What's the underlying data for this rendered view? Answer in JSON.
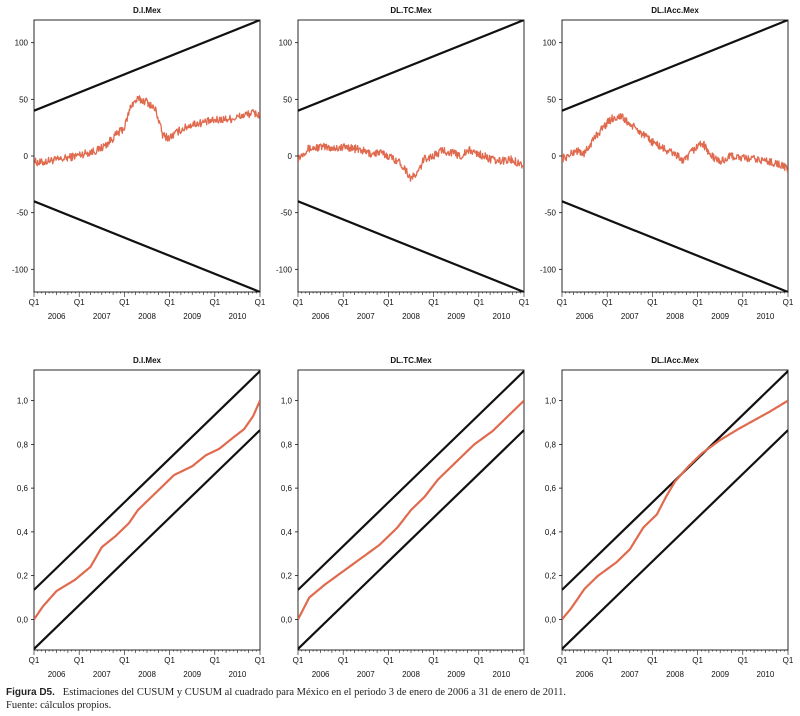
{
  "caption": {
    "label": "Figura D5.",
    "text": "Estimaciones del CUSUM y CUSUM al cuadrado para México en el periodo  3 de enero de 2006 a 31 de enero de 2011.",
    "source": "Fuente: cálculos propios."
  },
  "colors": {
    "series": "#e06a4e",
    "bands": "#111111",
    "axis": "#111111"
  },
  "chart_data": [
    {
      "type": "line",
      "title": "D.I.Mex",
      "kind": "cusum",
      "ylim": [
        -120,
        120
      ],
      "yticks": [
        -100,
        -50,
        0,
        50,
        100
      ],
      "band_x": [
        0,
        1
      ],
      "upper_band": [
        40,
        120
      ],
      "lower_band": [
        -40,
        -120
      ],
      "x_categories": [
        "2006",
        "2007",
        "2008",
        "2009",
        "2010"
      ],
      "x_tick_marks": [
        "Q1",
        "Q1",
        "Q1",
        "Q1",
        "Q1",
        "Q1"
      ],
      "series_x": [
        0,
        0.03,
        0.07,
        0.12,
        0.18,
        0.24,
        0.28,
        0.32,
        0.36,
        0.4,
        0.43,
        0.46,
        0.5,
        0.54,
        0.57,
        0.6,
        0.64,
        0.7,
        0.76,
        0.82,
        0.88,
        0.93,
        0.97,
        1
      ],
      "series_y": [
        -5,
        -6,
        -4,
        -3,
        0,
        3,
        5,
        10,
        18,
        25,
        45,
        50,
        48,
        40,
        18,
        16,
        22,
        28,
        30,
        32,
        33,
        36,
        38,
        36
      ]
    },
    {
      "type": "line",
      "title": "DL.TC.Mex",
      "kind": "cusum",
      "ylim": [
        -120,
        120
      ],
      "yticks": [
        -100,
        -50,
        0,
        50,
        100
      ],
      "band_x": [
        0,
        1
      ],
      "upper_band": [
        40,
        120
      ],
      "lower_band": [
        -40,
        -120
      ],
      "x_categories": [
        "2006",
        "2007",
        "2008",
        "2009",
        "2010"
      ],
      "x_tick_marks": [
        "Q1",
        "Q1",
        "Q1",
        "Q1",
        "Q1",
        "Q1"
      ],
      "series_x": [
        0,
        0.04,
        0.1,
        0.16,
        0.22,
        0.28,
        0.32,
        0.36,
        0.4,
        0.44,
        0.47,
        0.5,
        0.53,
        0.56,
        0.6,
        0.64,
        0.68,
        0.72,
        0.76,
        0.82,
        0.88,
        0.94,
        1
      ],
      "series_y": [
        -2,
        6,
        8,
        7,
        8,
        5,
        2,
        3,
        0,
        -4,
        -10,
        -20,
        -15,
        -2,
        0,
        5,
        3,
        0,
        5,
        0,
        -5,
        -3,
        -8
      ]
    },
    {
      "type": "line",
      "title": "DL.IAcc.Mex",
      "kind": "cusum",
      "ylim": [
        -120,
        120
      ],
      "yticks": [
        -100,
        -50,
        0,
        50,
        100
      ],
      "band_x": [
        0,
        1
      ],
      "upper_band": [
        40,
        120
      ],
      "lower_band": [
        -40,
        -120
      ],
      "x_categories": [
        "2006",
        "2007",
        "2008",
        "2009",
        "2010"
      ],
      "x_tick_marks": [
        "Q1",
        "Q1",
        "Q1",
        "Q1",
        "Q1",
        "Q1"
      ],
      "series_x": [
        0,
        0.03,
        0.06,
        0.1,
        0.14,
        0.18,
        0.22,
        0.26,
        0.3,
        0.34,
        0.38,
        0.42,
        0.46,
        0.5,
        0.54,
        0.58,
        0.62,
        0.66,
        0.7,
        0.75,
        0.8,
        0.86,
        0.92,
        0.97,
        1
      ],
      "series_y": [
        -2,
        0,
        5,
        2,
        15,
        25,
        33,
        35,
        28,
        22,
        15,
        10,
        5,
        2,
        -5,
        5,
        12,
        0,
        -5,
        0,
        -2,
        -3,
        -5,
        -8,
        -12
      ]
    },
    {
      "type": "line",
      "title": "D.I.Mex",
      "kind": "cusumsq",
      "ylim": [
        -0.14,
        1.14
      ],
      "yticks": [
        0.0,
        0.2,
        0.4,
        0.6,
        0.8,
        1.0
      ],
      "ytick_labels": [
        "0,0",
        "0,2",
        "0,4",
        "0,6",
        "0,8",
        "1,0"
      ],
      "band_x": [
        0,
        1
      ],
      "upper_band": [
        0.135,
        1.135
      ],
      "lower_band": [
        -0.135,
        0.865
      ],
      "x_categories": [
        "2006",
        "2007",
        "2008",
        "2009",
        "2010"
      ],
      "x_tick_marks": [
        "Q1",
        "Q1",
        "Q1",
        "Q1",
        "Q1",
        "Q1"
      ],
      "series_x": [
        0,
        0.04,
        0.1,
        0.18,
        0.25,
        0.3,
        0.36,
        0.42,
        0.46,
        0.5,
        0.56,
        0.62,
        0.7,
        0.76,
        0.82,
        0.88,
        0.93,
        0.97,
        1
      ],
      "series_y": [
        0.0,
        0.06,
        0.13,
        0.18,
        0.24,
        0.33,
        0.38,
        0.44,
        0.5,
        0.54,
        0.6,
        0.66,
        0.7,
        0.75,
        0.78,
        0.83,
        0.87,
        0.93,
        1.0
      ]
    },
    {
      "type": "line",
      "title": "DL.TC.Mex",
      "kind": "cusumsq",
      "ylim": [
        -0.14,
        1.14
      ],
      "yticks": [
        0.0,
        0.2,
        0.4,
        0.6,
        0.8,
        1.0
      ],
      "ytick_labels": [
        "0,0",
        "0,2",
        "0,4",
        "0,6",
        "0,8",
        "1,0"
      ],
      "band_x": [
        0,
        1
      ],
      "upper_band": [
        0.135,
        1.135
      ],
      "lower_band": [
        -0.135,
        0.865
      ],
      "x_categories": [
        "2006",
        "2007",
        "2008",
        "2009",
        "2010"
      ],
      "x_tick_marks": [
        "Q1",
        "Q1",
        "Q1",
        "Q1",
        "Q1",
        "Q1"
      ],
      "series_x": [
        0,
        0.05,
        0.12,
        0.2,
        0.28,
        0.36,
        0.44,
        0.5,
        0.56,
        0.62,
        0.7,
        0.78,
        0.86,
        0.93,
        1
      ],
      "series_y": [
        0.0,
        0.1,
        0.16,
        0.22,
        0.28,
        0.34,
        0.42,
        0.5,
        0.56,
        0.64,
        0.72,
        0.8,
        0.86,
        0.93,
        1.0
      ]
    },
    {
      "type": "line",
      "title": "DL.IAcc.Mex",
      "kind": "cusumsq",
      "ylim": [
        -0.14,
        1.14
      ],
      "yticks": [
        0.0,
        0.2,
        0.4,
        0.6,
        0.8,
        1.0
      ],
      "ytick_labels": [
        "0,0",
        "0,2",
        "0,4",
        "0,6",
        "0,8",
        "1,0"
      ],
      "band_x": [
        0,
        1
      ],
      "upper_band": [
        0.135,
        1.135
      ],
      "lower_band": [
        -0.135,
        0.865
      ],
      "x_categories": [
        "2006",
        "2007",
        "2008",
        "2009",
        "2010"
      ],
      "x_tick_marks": [
        "Q1",
        "Q1",
        "Q1",
        "Q1",
        "Q1",
        "Q1"
      ],
      "series_x": [
        0,
        0.04,
        0.1,
        0.16,
        0.24,
        0.3,
        0.36,
        0.42,
        0.46,
        0.5,
        0.56,
        0.62,
        0.7,
        0.78,
        0.85,
        0.92,
        1
      ],
      "series_y": [
        0.0,
        0.05,
        0.14,
        0.2,
        0.26,
        0.32,
        0.42,
        0.48,
        0.56,
        0.63,
        0.7,
        0.76,
        0.82,
        0.87,
        0.91,
        0.95,
        1.0
      ]
    }
  ]
}
